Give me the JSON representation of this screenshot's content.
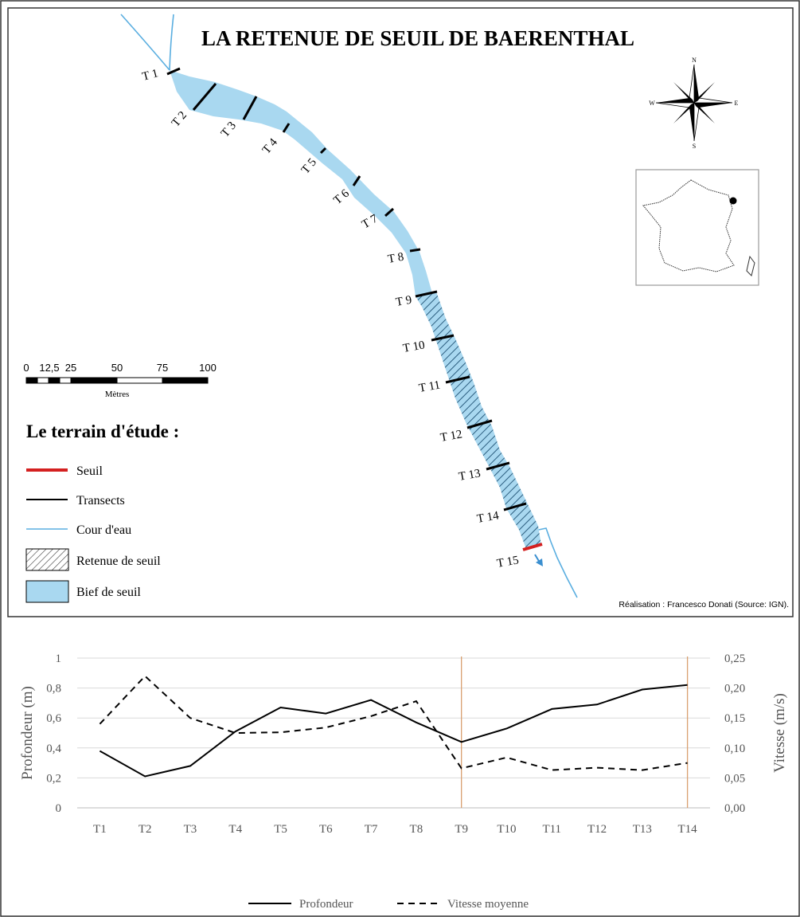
{
  "map": {
    "title": "LA RETENUE DE SEUIL DE BAERENTHAL",
    "credit": "Réalisation : Francesco Donati (Source: IGN).",
    "compass": {
      "n": "N",
      "s": "S",
      "e": "E",
      "w": "W"
    },
    "transect_labels": [
      "T 1",
      "T 2",
      "T 3",
      "T 4",
      "T 5",
      "T 6",
      "T 7",
      "T 8",
      "T 9",
      "T 10",
      "T 11",
      "T 12",
      "T 13",
      "T 14",
      "T 15"
    ],
    "scale_bar": {
      "ticks": [
        "0",
        "12,5",
        "25",
        "50",
        "75",
        "100"
      ],
      "unit": "Mètres"
    },
    "legend": {
      "title": "Le terrain d'étude :",
      "items": [
        "Seuil",
        "Transects",
        "Cour d'eau",
        "Retenue de seuil",
        "Bief de seuil"
      ]
    },
    "colors": {
      "water": "#a9d8f0",
      "river": "#5aaee0",
      "seuil": "#d42020",
      "transect": "#000000",
      "hatch": "#2d5f80"
    }
  },
  "chart_data": {
    "type": "line",
    "categories": [
      "T1",
      "T2",
      "T3",
      "T4",
      "T5",
      "T6",
      "T7",
      "T8",
      "T9",
      "T10",
      "T11",
      "T12",
      "T13",
      "T14"
    ],
    "series": [
      {
        "name": "Profondeur",
        "axis": "left",
        "style": "solid",
        "values": [
          0.38,
          0.21,
          0.28,
          0.51,
          0.67,
          0.63,
          0.72,
          0.57,
          0.44,
          0.53,
          0.66,
          0.69,
          0.79,
          0.82
        ]
      },
      {
        "name": "Vitesse moyenne",
        "axis": "right",
        "style": "dashed",
        "values": [
          0.14,
          0.22,
          0.15,
          0.125,
          0.126,
          0.134,
          0.153,
          0.178,
          0.066,
          0.084,
          0.063,
          0.067,
          0.063,
          0.075
        ]
      }
    ],
    "ylabel": "Profondeur (m)",
    "ylabel_right": "Vitesse (m/s)",
    "ylim": [
      0,
      1
    ],
    "ylim_right": [
      0,
      0.25
    ],
    "yticks": [
      "0",
      "0,2",
      "0,4",
      "0,6",
      "0,8",
      "1"
    ],
    "yticks_right": [
      "0,00",
      "0,05",
      "0,10",
      "0,15",
      "0,20",
      "0,25"
    ],
    "vertical_markers": [
      "T9",
      "T14"
    ],
    "marker_color": "#d9a070",
    "grid": true,
    "legend_position": "bottom"
  }
}
